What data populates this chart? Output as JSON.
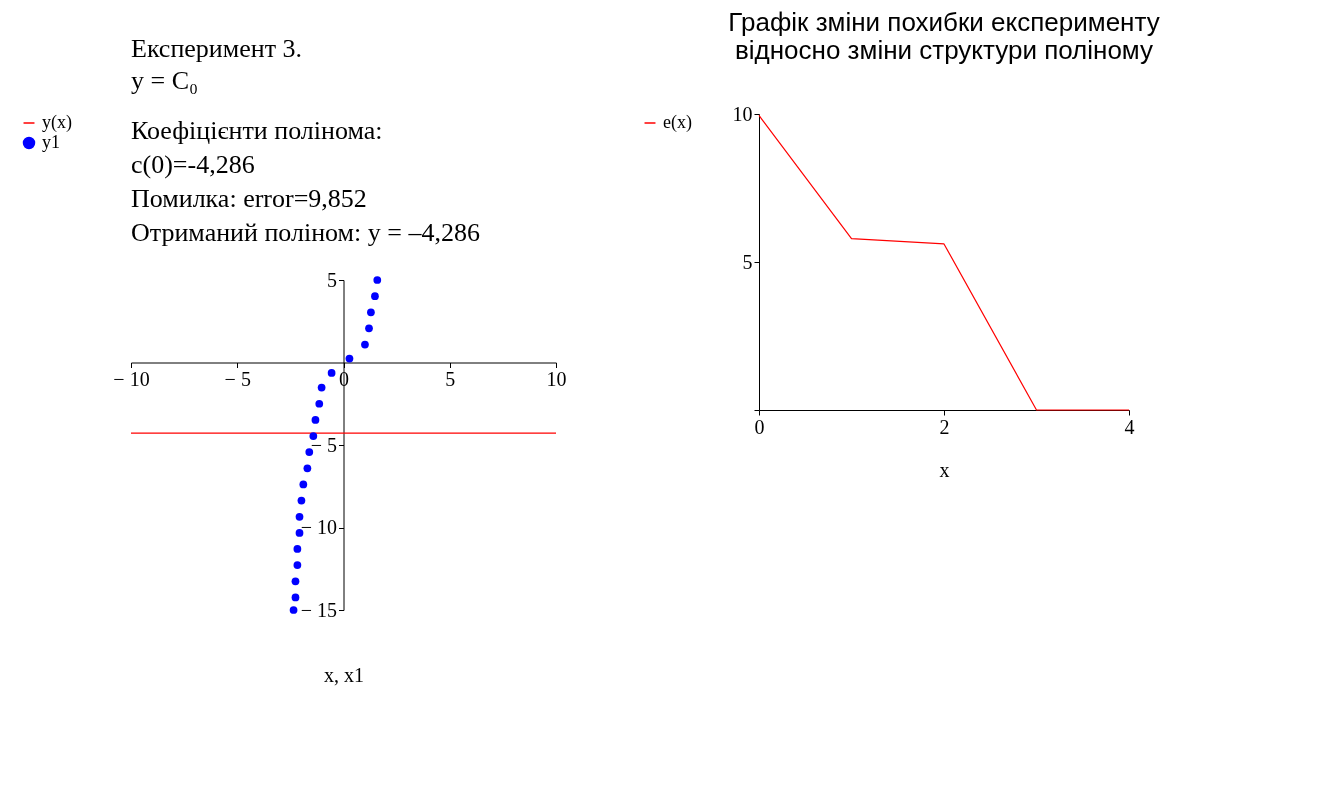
{
  "chart_data": [
    {
      "type": "scatter",
      "title": "Експеримент 3.",
      "subtitle": "y = C₀",
      "annotations": [
        "Коефіцієнти полінома:",
        "c(0)=-4,286",
        "Помилка: error=9,852",
        "Отриманий поліном:  y = –4,286"
      ],
      "xlabel": "x, x1",
      "xlim": [
        -10,
        10
      ],
      "xticks": [
        {
          "value": -10,
          "label": "− 10"
        },
        {
          "value": -5,
          "label": "− 5"
        },
        0,
        5,
        10
      ],
      "ylim": [
        -15,
        5
      ],
      "yticks": [
        5,
        {
          "value": -5,
          "label": "− 5"
        },
        {
          "value": -10,
          "label": "− 10"
        },
        {
          "value": -15,
          "label": "− 15"
        }
      ],
      "grid": false,
      "legend": "left",
      "series": [
        {
          "name": "y(x)",
          "type": "line",
          "color": "#ff0000",
          "x": [
            -10,
            10
          ],
          "values": [
            -4.286,
            -4.286
          ]
        },
        {
          "name": "y1",
          "type": "scatter",
          "marker": "circle",
          "color": "#0000ff",
          "x": [
            1.59,
            1.48,
            1.29,
            1.2,
            1.01,
            0.28,
            -0.56,
            -1.03,
            -1.14,
            -1.32,
            -1.42,
            -1.61,
            -1.7,
            -1.89,
            -1.98,
            -2.07,
            -2.07,
            -2.17,
            -2.17,
            -2.26,
            -2.26,
            -2.35
          ],
          "values": [
            5.0,
            4.02,
            3.04,
            2.07,
            1.09,
            0.24,
            -0.63,
            -1.52,
            -2.5,
            -3.48,
            -4.46,
            -5.43,
            -6.41,
            -7.39,
            -8.37,
            -9.35,
            -10.33,
            -11.3,
            -12.28,
            -13.26,
            -14.24,
            -15.0
          ]
        }
      ]
    },
    {
      "type": "line",
      "title": "Графік зміни похибки експерименту відносно зміни структури поліному",
      "xlabel": "x",
      "xlim": [
        0,
        4
      ],
      "xticks": [
        0,
        2,
        4
      ],
      "ylim": [
        0,
        10
      ],
      "yticks": [
        {
          "value": 0,
          "label": null
        },
        5,
        10
      ],
      "grid": false,
      "legend": "left",
      "series": [
        {
          "name": "e(x)",
          "color": "#ff0000",
          "x": [
            0,
            1,
            2,
            3,
            4
          ],
          "values": [
            9.95,
            5.79,
            5.61,
            0,
            0
          ]
        }
      ]
    }
  ]
}
